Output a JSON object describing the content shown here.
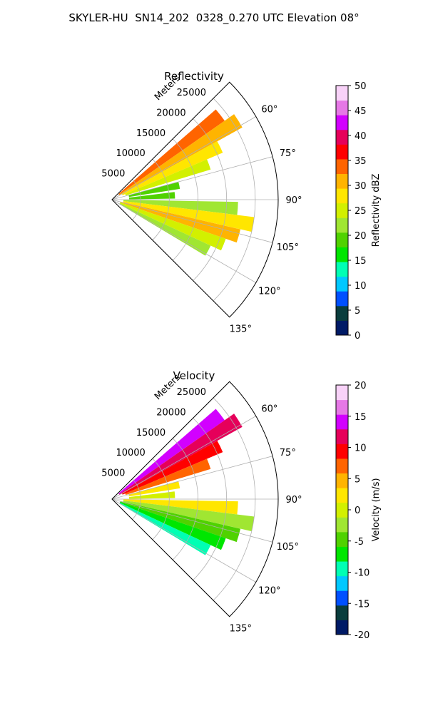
{
  "figure": {
    "suptitle": "SKYLER-HU  SN14_202  0328_0.270 UTC Elevation 08°"
  },
  "chart_data": [
    {
      "type": "heatmap",
      "id": "reflectivity",
      "title": "Reflectivity",
      "projection": "polar-sector",
      "radial_label": "Meters",
      "r_ticks": [
        "5000",
        "10000",
        "15000",
        "20000",
        "25000"
      ],
      "r_values": [
        5000,
        10000,
        15000,
        20000,
        25000
      ],
      "r_max": 29000,
      "theta_ticks": [
        "60°",
        "75°",
        "90°",
        "105°",
        "120°",
        "135°"
      ],
      "theta_values": [
        60,
        75,
        90,
        105,
        120,
        135
      ],
      "theta_range": [
        45,
        135
      ],
      "grid": true,
      "colorbar": {
        "label": "Reflectivity dBZ",
        "ticks": [
          "0",
          "5",
          "10",
          "15",
          "20",
          "25",
          "30",
          "35",
          "40",
          "45",
          "50"
        ],
        "range": [
          0,
          50
        ],
        "colors": [
          "#001a66",
          "#0a3d3d",
          "#0050ff",
          "#00c8ff",
          "#00ffb4",
          "#00e600",
          "#50d200",
          "#a0e632",
          "#d2f000",
          "#ffe600",
          "#ffb400",
          "#ff6400",
          "#ff0000",
          "#e6005a",
          "#d200ff",
          "#e678e6",
          "#f8d2f8"
        ]
      },
      "echoes": [
        {
          "az": 52,
          "r0": 1500,
          "r1": 24000,
          "value": 35
        },
        {
          "az": 58,
          "r0": 1500,
          "r1": 26000,
          "value": 30
        },
        {
          "az": 64,
          "r0": 2000,
          "r1": 21000,
          "value": 28
        },
        {
          "az": 70,
          "r0": 2500,
          "r1": 18000,
          "value": 25
        },
        {
          "az": 78,
          "r0": 3000,
          "r1": 12000,
          "value": 20
        },
        {
          "az": 86,
          "r0": 3000,
          "r1": 11000,
          "value": 20
        },
        {
          "az": 94,
          "r0": 2000,
          "r1": 22000,
          "value": 22
        },
        {
          "az": 100,
          "r0": 2000,
          "r1": 25000,
          "value": 28
        },
        {
          "az": 106,
          "r0": 1500,
          "r1": 23000,
          "value": 30
        },
        {
          "az": 112,
          "r0": 1500,
          "r1": 21000,
          "value": 26
        },
        {
          "az": 118,
          "r0": 1500,
          "r1": 19000,
          "value": 22
        }
      ]
    },
    {
      "type": "heatmap",
      "id": "velocity",
      "title": "Velocity",
      "projection": "polar-sector",
      "radial_label": "Meters",
      "r_ticks": [
        "5000",
        "10000",
        "15000",
        "20000",
        "25000"
      ],
      "r_values": [
        5000,
        10000,
        15000,
        20000,
        25000
      ],
      "r_max": 29000,
      "theta_ticks": [
        "60°",
        "75°",
        "90°",
        "105°",
        "120°",
        "135°"
      ],
      "theta_values": [
        60,
        75,
        90,
        105,
        120,
        135
      ],
      "theta_range": [
        45,
        135
      ],
      "grid": true,
      "colorbar": {
        "label": "Velocity (m/s)",
        "ticks": [
          "-20",
          "-15",
          "-10",
          "-5",
          "0",
          "5",
          "10",
          "15",
          "20"
        ],
        "range": [
          -20,
          20
        ],
        "colors": [
          "#001a66",
          "#0a3d3d",
          "#0050ff",
          "#00c8ff",
          "#00ffb4",
          "#00e600",
          "#50d200",
          "#a0e632",
          "#d2f000",
          "#ffe600",
          "#ffb400",
          "#ff6400",
          "#ff0000",
          "#e6005a",
          "#d200ff",
          "#e678e6",
          "#f8d2f8"
        ]
      },
      "echoes": [
        {
          "az": 52,
          "r0": 1500,
          "r1": 24000,
          "value": 13
        },
        {
          "az": 58,
          "r0": 1500,
          "r1": 26000,
          "value": 12
        },
        {
          "az": 64,
          "r0": 2000,
          "r1": 21000,
          "value": 9
        },
        {
          "az": 70,
          "r0": 2500,
          "r1": 18000,
          "value": 6
        },
        {
          "az": 78,
          "r0": 3000,
          "r1": 12000,
          "value": 2
        },
        {
          "az": 86,
          "r0": 3000,
          "r1": 11000,
          "value": 1
        },
        {
          "az": 94,
          "r0": 2000,
          "r1": 22000,
          "value": 3
        },
        {
          "az": 100,
          "r0": 2000,
          "r1": 25000,
          "value": -2
        },
        {
          "az": 106,
          "r0": 1500,
          "r1": 23000,
          "value": -5
        },
        {
          "az": 112,
          "r0": 1500,
          "r1": 21000,
          "value": -8
        },
        {
          "az": 118,
          "r0": 1500,
          "r1": 19000,
          "value": -10
        }
      ]
    }
  ]
}
